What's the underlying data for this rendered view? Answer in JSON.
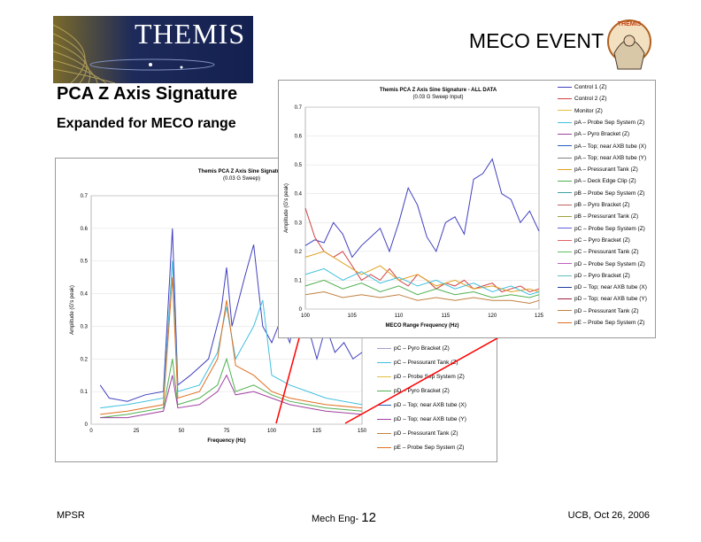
{
  "header": {
    "logo_text": "THEMIS",
    "slide_title": "MECO EVENT",
    "mascot_text": "THEMIS"
  },
  "section": {
    "title": "PCA Z Axis Signature",
    "subtitle": "Expanded for MECO range"
  },
  "footer": {
    "left": "MPSR",
    "center_prefix": "Mech Eng-",
    "center_num": "12",
    "right": "UCB, Oct 26, 2006"
  },
  "colors": {
    "connector": "#ff0000",
    "peak_series": "#4040c0",
    "panel_border": "#9a9a9a"
  },
  "chart_data": [
    {
      "type": "line",
      "title": "Themis PCA Z Axis Sine Signature",
      "subtitle": "(0.03 G Sweep)",
      "xlabel": "Frequency (Hz)",
      "ylabel": "Amplitude (G's peak)",
      "xlim": [
        0,
        150
      ],
      "ylim": [
        0,
        0.7
      ],
      "x_ticks": [
        "0",
        "25",
        "50",
        "75",
        "100",
        "125",
        "150"
      ],
      "y_ticks": [
        "0.7",
        "0.6",
        "0.5",
        "0.4",
        "0.3",
        "0.2",
        "0.1",
        "0"
      ],
      "series": [
        {
          "name": "pA – Top; near AXB tube (X)",
          "color": "#4040c0",
          "x": [
            5,
            10,
            20,
            30,
            40,
            45,
            48,
            55,
            65,
            72,
            75,
            78,
            85,
            90,
            95,
            100,
            105,
            110,
            115,
            120,
            125,
            130,
            135,
            140,
            145,
            150
          ],
          "y": [
            0.12,
            0.08,
            0.07,
            0.09,
            0.1,
            0.6,
            0.12,
            0.15,
            0.2,
            0.35,
            0.48,
            0.3,
            0.45,
            0.55,
            0.3,
            0.25,
            0.32,
            0.25,
            0.38,
            0.3,
            0.2,
            0.3,
            0.22,
            0.25,
            0.2,
            0.22
          ]
        },
        {
          "name": "pC – Pressurant Tank (Z)",
          "color": "#40c0e0",
          "x": [
            5,
            20,
            40,
            45,
            48,
            60,
            70,
            75,
            80,
            90,
            95,
            100,
            110,
            120,
            130,
            150
          ],
          "y": [
            0.05,
            0.06,
            0.08,
            0.5,
            0.1,
            0.12,
            0.22,
            0.36,
            0.2,
            0.3,
            0.38,
            0.15,
            0.12,
            0.1,
            0.08,
            0.06
          ]
        },
        {
          "name": "pE – Probe Sep System (Z)",
          "color": "#e07020",
          "x": [
            5,
            20,
            40,
            45,
            48,
            60,
            70,
            75,
            80,
            90,
            100,
            110,
            120,
            130,
            150
          ],
          "y": [
            0.03,
            0.04,
            0.06,
            0.45,
            0.08,
            0.1,
            0.2,
            0.38,
            0.18,
            0.15,
            0.1,
            0.08,
            0.07,
            0.06,
            0.05
          ]
        },
        {
          "name": "pD – Pyro Bracket (Z)",
          "color": "#50b050",
          "x": [
            5,
            20,
            40,
            45,
            48,
            60,
            70,
            75,
            80,
            90,
            100,
            110,
            120,
            130,
            150
          ],
          "y": [
            0.02,
            0.03,
            0.05,
            0.2,
            0.06,
            0.08,
            0.12,
            0.2,
            0.1,
            0.12,
            0.09,
            0.07,
            0.06,
            0.05,
            0.04
          ]
        },
        {
          "name": "pD – Top; near AXB tube (Y)",
          "color": "#a040a0",
          "x": [
            5,
            20,
            40,
            45,
            48,
            60,
            70,
            75,
            80,
            90,
            100,
            110,
            120,
            130,
            150
          ],
          "y": [
            0.02,
            0.02,
            0.04,
            0.15,
            0.05,
            0.06,
            0.1,
            0.15,
            0.09,
            0.1,
            0.08,
            0.06,
            0.05,
            0.04,
            0.03
          ]
        }
      ],
      "legend": [
        {
          "label": "pC – Pyro Bracket (Z)",
          "color": "#a0a0d0"
        },
        {
          "label": "pC – Pressurant Tank (Z)",
          "color": "#40c0e0"
        },
        {
          "label": "pD – Probe Sep System (Z)",
          "color": "#e0c040"
        },
        {
          "label": "pD – Pyro Bracket (Z)",
          "color": "#50b050"
        },
        {
          "label": "pD – Top; near AXB tube (X)",
          "color": "#2060c0"
        },
        {
          "label": "pD – Top; near AXB tube (Y)",
          "color": "#a040a0"
        },
        {
          "label": "pD – Pressurant Tank (Z)",
          "color": "#c08040"
        },
        {
          "label": "pE – Probe Sep System (Z)",
          "color": "#e07020"
        }
      ]
    },
    {
      "type": "line",
      "title": "Themis PCA Z Axis Sine Signature - ALL DATA",
      "subtitle": "(0.03 G Sweep Input)",
      "xlabel": "MECO Range Frequency (Hz)",
      "ylabel": "Amplitude (G's peak)",
      "xlim": [
        100,
        125
      ],
      "ylim": [
        0,
        0.7
      ],
      "x_ticks": [
        "100",
        "105",
        "110",
        "115",
        "120",
        "125"
      ],
      "y_ticks": [
        "0.7",
        "0.6",
        "0.5",
        "0.4",
        "0.3",
        "0.2",
        "0.1",
        "0"
      ],
      "series": [
        {
          "name": "pA – Top; near AXB tube (X)",
          "color": "#4040c0",
          "x": [
            100,
            101,
            102,
            103,
            104,
            105,
            106,
            107,
            108,
            109,
            110,
            111,
            112,
            113,
            114,
            115,
            116,
            117,
            118,
            119,
            120,
            121,
            122,
            123,
            124,
            125
          ],
          "y": [
            0.22,
            0.24,
            0.23,
            0.3,
            0.26,
            0.18,
            0.22,
            0.25,
            0.28,
            0.2,
            0.3,
            0.42,
            0.36,
            0.25,
            0.2,
            0.3,
            0.32,
            0.26,
            0.45,
            0.47,
            0.52,
            0.4,
            0.38,
            0.3,
            0.34,
            0.27
          ]
        },
        {
          "name": "Control 2 (Z)",
          "color": "#d04040",
          "x": [
            100,
            101,
            102,
            103,
            104,
            105,
            106,
            107,
            108,
            109,
            110,
            111,
            112,
            113,
            114,
            115,
            116,
            117,
            118,
            119,
            120,
            121,
            122,
            123,
            124,
            125
          ],
          "y": [
            0.35,
            0.25,
            0.2,
            0.18,
            0.2,
            0.15,
            0.1,
            0.12,
            0.1,
            0.14,
            0.1,
            0.08,
            0.12,
            0.1,
            0.07,
            0.09,
            0.08,
            0.1,
            0.07,
            0.08,
            0.09,
            0.06,
            0.07,
            0.08,
            0.06,
            0.07
          ]
        },
        {
          "name": "pA – Pressurant Tank (Z)",
          "color": "#e0a020",
          "x": [
            100,
            102,
            104,
            106,
            108,
            110,
            112,
            114,
            116,
            118,
            120,
            122,
            124,
            125
          ],
          "y": [
            0.18,
            0.2,
            0.16,
            0.12,
            0.15,
            0.1,
            0.12,
            0.08,
            0.1,
            0.07,
            0.08,
            0.06,
            0.07,
            0.06
          ]
        },
        {
          "name": "pB – Probe Sep System (Z)",
          "color": "#40c0e0",
          "x": [
            100,
            102,
            104,
            106,
            108,
            110,
            112,
            114,
            116,
            118,
            120,
            122,
            124,
            125
          ],
          "y": [
            0.12,
            0.14,
            0.1,
            0.13,
            0.09,
            0.11,
            0.08,
            0.1,
            0.07,
            0.09,
            0.06,
            0.08,
            0.05,
            0.06
          ]
        },
        {
          "name": "pC – Pyro Bracket (Z)",
          "color": "#50b050",
          "x": [
            100,
            102,
            104,
            106,
            108,
            110,
            112,
            114,
            116,
            118,
            120,
            122,
            124,
            125
          ],
          "y": [
            0.08,
            0.1,
            0.07,
            0.09,
            0.06,
            0.08,
            0.05,
            0.07,
            0.05,
            0.06,
            0.04,
            0.05,
            0.04,
            0.05
          ]
        },
        {
          "name": "pD – Pressurant Tank (Z)",
          "color": "#c08040",
          "x": [
            100,
            102,
            104,
            106,
            108,
            110,
            112,
            114,
            116,
            118,
            120,
            122,
            124,
            125
          ],
          "y": [
            0.05,
            0.06,
            0.04,
            0.05,
            0.04,
            0.05,
            0.03,
            0.04,
            0.03,
            0.04,
            0.03,
            0.03,
            0.02,
            0.03
          ]
        }
      ],
      "legend": [
        {
          "label": "Control 1 (Z)",
          "color": "#4040c0"
        },
        {
          "label": "Control 2 (Z)",
          "color": "#d04040"
        },
        {
          "label": "Monitor (Z)",
          "color": "#e0c040"
        },
        {
          "label": "pA – Probe Sep System (Z)",
          "color": "#40c0e0"
        },
        {
          "label": "pA – Pyro Bracket (Z)",
          "color": "#a040a0"
        },
        {
          "label": "pA – Top; near AXB tube (X)",
          "color": "#2060c0"
        },
        {
          "label": "pA – Top; near AXB tube (Y)",
          "color": "#808080"
        },
        {
          "label": "pA – Pressurant Tank (Z)",
          "color": "#e0a020"
        },
        {
          "label": "pA – Deck Edge Clip (Z)",
          "color": "#50b050"
        },
        {
          "label": "pB – Probe Sep System (Z)",
          "color": "#40a0a0"
        },
        {
          "label": "pB – Pyro Bracket (Z)",
          "color": "#c06060"
        },
        {
          "label": "pB – Pressurant Tank (Z)",
          "color": "#a0a040"
        },
        {
          "label": "pC – Probe Sep System (Z)",
          "color": "#6060e0"
        },
        {
          "label": "pC – Pyro Bracket (Z)",
          "color": "#e06060"
        },
        {
          "label": "pC – Pressurant Tank (Z)",
          "color": "#60c060"
        },
        {
          "label": "pD – Probe Sep System (Z)",
          "color": "#c060c0"
        },
        {
          "label": "pD – Pyro Bracket (Z)",
          "color": "#60c0c0"
        },
        {
          "label": "pD – Top; near AXB tube (X)",
          "color": "#2040a0"
        },
        {
          "label": "pD – Top; near AXB tube (Y)",
          "color": "#a02040"
        },
        {
          "label": "pD – Pressurant Tank (Z)",
          "color": "#c08040"
        },
        {
          "label": "pE – Probe Sep System (Z)",
          "color": "#e07020"
        }
      ]
    }
  ]
}
